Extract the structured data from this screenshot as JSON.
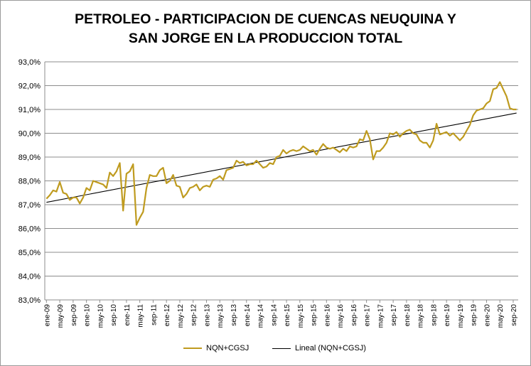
{
  "chart_data": {
    "type": "line",
    "title_lines": [
      "PETROLEO - PARTICIPACION DE CUENCAS NEUQUINA Y",
      "SAN JORGE EN LA PRODUCCION TOTAL"
    ],
    "y_tick_labels": [
      "83,0%",
      "84,0%",
      "85,0%",
      "86,0%",
      "87,0%",
      "88,0%",
      "89,0%",
      "90,0%",
      "91,0%",
      "92,0%",
      "93,0%"
    ],
    "ylim": [
      83,
      93
    ],
    "grid": true,
    "x_start": "2009-01",
    "x_tick_labels": [
      "ene-09",
      "may-09",
      "sep-09",
      "ene-10",
      "may-10",
      "sep-10",
      "ene-11",
      "may-11",
      "sep-11",
      "ene-12",
      "may-12",
      "sep-12",
      "ene-13",
      "may-13",
      "sep-13",
      "ene-14",
      "may-14",
      "sep-14",
      "ene-15",
      "may-15",
      "sep-15",
      "ene-16",
      "may-16",
      "sep-16",
      "ene-17",
      "may-17",
      "sep-17",
      "ene-18",
      "may-18",
      "sep-18",
      "ene-19",
      "may-19",
      "sep-19",
      "ene-20",
      "may-20",
      "sep-20"
    ],
    "legend_position": "bottom",
    "series": [
      {
        "name": "NQN+CGSJ",
        "color": "#BF9B1F",
        "values": [
          87.25,
          87.4,
          87.6,
          87.55,
          87.95,
          87.5,
          87.45,
          87.2,
          87.3,
          87.3,
          87.05,
          87.3,
          87.7,
          87.6,
          88.0,
          87.95,
          87.9,
          87.85,
          87.7,
          88.35,
          88.2,
          88.4,
          88.75,
          86.75,
          88.3,
          88.4,
          88.7,
          86.15,
          86.45,
          86.7,
          87.7,
          88.25,
          88.2,
          88.2,
          88.45,
          88.55,
          87.9,
          88.0,
          88.25,
          87.8,
          87.75,
          87.3,
          87.45,
          87.7,
          87.75,
          87.85,
          87.6,
          87.75,
          87.8,
          87.75,
          88.05,
          88.1,
          88.2,
          88.05,
          88.45,
          88.5,
          88.55,
          88.85,
          88.75,
          88.8,
          88.65,
          88.7,
          88.7,
          88.85,
          88.7,
          88.55,
          88.6,
          88.75,
          88.7,
          89.0,
          89.05,
          89.3,
          89.15,
          89.25,
          89.3,
          89.25,
          89.3,
          89.45,
          89.35,
          89.25,
          89.3,
          89.1,
          89.35,
          89.55,
          89.4,
          89.35,
          89.4,
          89.3,
          89.2,
          89.35,
          89.25,
          89.45,
          89.4,
          89.45,
          89.75,
          89.7,
          90.1,
          89.75,
          88.9,
          89.25,
          89.25,
          89.4,
          89.6,
          90.0,
          89.95,
          90.05,
          89.85,
          90.0,
          90.1,
          90.15,
          90.0,
          89.95,
          89.7,
          89.6,
          89.6,
          89.4,
          89.7,
          90.4,
          89.95,
          90.0,
          90.05,
          89.9,
          90.0,
          89.85,
          89.7,
          89.85,
          90.1,
          90.35,
          90.75,
          90.95,
          91.0,
          91.05,
          91.25,
          91.35,
          91.85,
          91.9,
          92.15,
          91.85,
          91.55,
          91.05,
          91.0,
          91.0
        ]
      },
      {
        "name": "Lineal (NQN+CGSJ)",
        "color": "#000000",
        "values": [
          87.1,
          90.85
        ]
      }
    ]
  }
}
